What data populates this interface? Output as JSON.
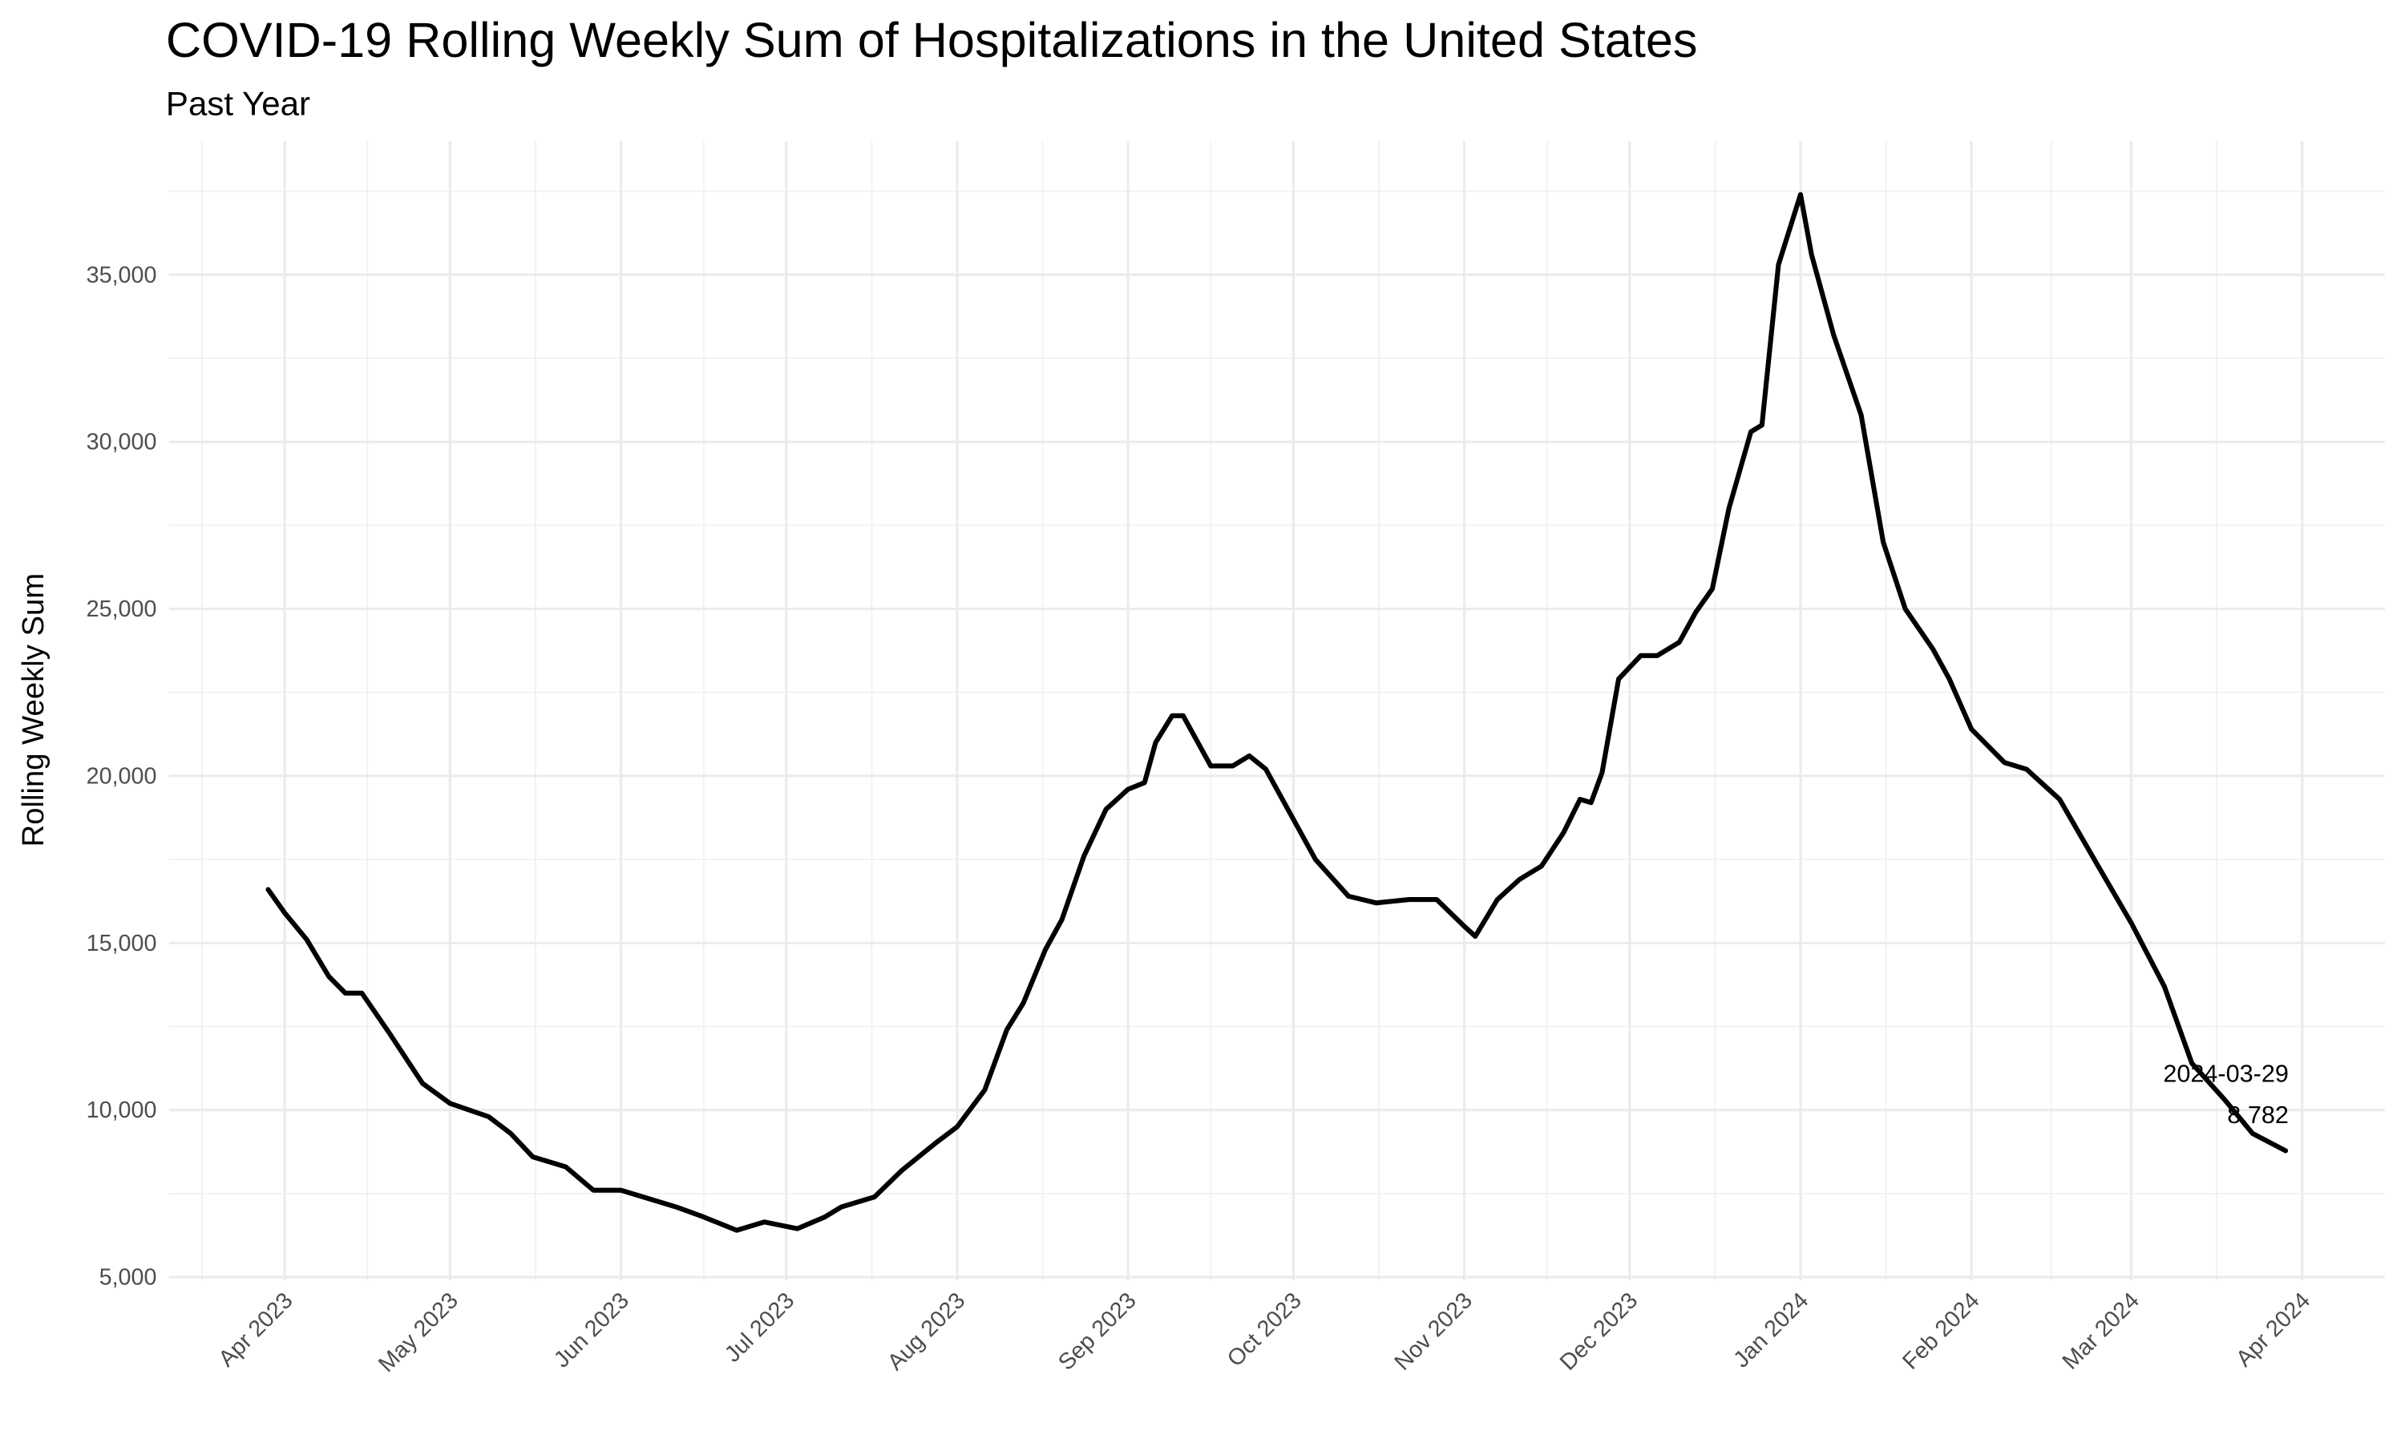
{
  "chart_data": {
    "type": "line",
    "title": "COVID-19 Rolling Weekly Sum of Hospitalizations in the United States",
    "subtitle": "Past Year",
    "y_label": "Rolling Weekly Sum",
    "color": "#000000",
    "grid": true,
    "x": [
      "2023-03-29",
      "2023-04-01",
      "2023-04-05",
      "2023-04-09",
      "2023-04-12",
      "2023-04-15",
      "2023-04-20",
      "2023-04-26",
      "2023-05-01",
      "2023-05-08",
      "2023-05-12",
      "2023-05-16",
      "2023-05-22",
      "2023-05-27",
      "2023-06-01",
      "2023-06-11",
      "2023-06-16",
      "2023-06-22",
      "2023-06-27",
      "2023-07-03",
      "2023-07-08",
      "2023-07-11",
      "2023-07-17",
      "2023-07-22",
      "2023-07-28",
      "2023-08-01",
      "2023-08-06",
      "2023-08-10",
      "2023-08-13",
      "2023-08-17",
      "2023-08-20",
      "2023-08-24",
      "2023-08-28",
      "2023-09-01",
      "2023-09-04",
      "2023-09-06",
      "2023-09-09",
      "2023-09-11",
      "2023-09-16",
      "2023-09-20",
      "2023-09-23",
      "2023-09-26",
      "2023-10-01",
      "2023-10-05",
      "2023-10-11",
      "2023-10-16",
      "2023-10-22",
      "2023-10-27",
      "2023-11-01",
      "2023-11-03",
      "2023-11-07",
      "2023-11-11",
      "2023-11-15",
      "2023-11-19",
      "2023-11-22",
      "2023-11-24",
      "2023-11-26",
      "2023-11-29",
      "2023-12-03",
      "2023-12-06",
      "2023-12-10",
      "2023-12-13",
      "2023-12-16",
      "2023-12-19",
      "2023-12-23",
      "2023-12-25",
      "2023-12-28",
      "2024-01-01",
      "2024-01-03",
      "2024-01-07",
      "2024-01-12",
      "2024-01-16",
      "2024-01-20",
      "2024-01-25",
      "2024-01-28",
      "2024-02-01",
      "2024-02-07",
      "2024-02-11",
      "2024-02-17",
      "2024-02-24",
      "2024-03-01",
      "2024-03-07",
      "2024-03-12",
      "2024-03-18",
      "2024-03-23",
      "2024-03-29"
    ],
    "values": [
      16600,
      15900,
      15100,
      14000,
      13500,
      13500,
      12300,
      10800,
      10200,
      9800,
      9300,
      8600,
      8300,
      7600,
      7600,
      7100,
      6800,
      6400,
      6650,
      6450,
      6800,
      7100,
      7400,
      8200,
      9000,
      9500,
      10600,
      12400,
      13200,
      14800,
      15700,
      17600,
      19000,
      19600,
      19800,
      21000,
      21800,
      21800,
      20300,
      20300,
      20600,
      20200,
      18700,
      17500,
      16400,
      16200,
      16300,
      16300,
      15500,
      15200,
      16300,
      16900,
      17300,
      18300,
      19300,
      19200,
      20100,
      22900,
      23600,
      23600,
      24000,
      24900,
      25600,
      28000,
      30300,
      30500,
      35300,
      37400,
      35600,
      33200,
      30800,
      27000,
      25000,
      23800,
      22900,
      21400,
      20400,
      20200,
      19300,
      17300,
      15600,
      13700,
      11400,
      10300,
      9300,
      8782
    ],
    "xlim": [
      "2023-03-11",
      "2024-04-16"
    ],
    "xticks": [
      {
        "value": "2023-04-01",
        "label": "Apr 2023"
      },
      {
        "value": "2023-05-01",
        "label": "May 2023"
      },
      {
        "value": "2023-06-01",
        "label": "Jun 2023"
      },
      {
        "value": "2023-07-01",
        "label": "Jul 2023"
      },
      {
        "value": "2023-08-01",
        "label": "Aug 2023"
      },
      {
        "value": "2023-09-01",
        "label": "Sep 2023"
      },
      {
        "value": "2023-10-01",
        "label": "Oct 2023"
      },
      {
        "value": "2023-11-01",
        "label": "Nov 2023"
      },
      {
        "value": "2023-12-01",
        "label": "Dec 2023"
      },
      {
        "value": "2024-01-01",
        "label": "Jan 2024"
      },
      {
        "value": "2024-02-01",
        "label": "Feb 2024"
      },
      {
        "value": "2024-03-01",
        "label": "Mar 2024"
      },
      {
        "value": "2024-04-01",
        "label": "Apr 2024"
      }
    ],
    "ylim": [
      4900,
      39000
    ],
    "yticks": [
      {
        "value": 5000,
        "label": "5,000"
      },
      {
        "value": 10000,
        "label": "10,000"
      },
      {
        "value": 15000,
        "label": "15,000"
      },
      {
        "value": 20000,
        "label": "20,000"
      },
      {
        "value": 25000,
        "label": "25,000"
      },
      {
        "value": 30000,
        "label": "30,000"
      },
      {
        "value": 35000,
        "label": "35,000"
      }
    ],
    "annotations": [
      "2024-03-29",
      "8,782"
    ]
  }
}
